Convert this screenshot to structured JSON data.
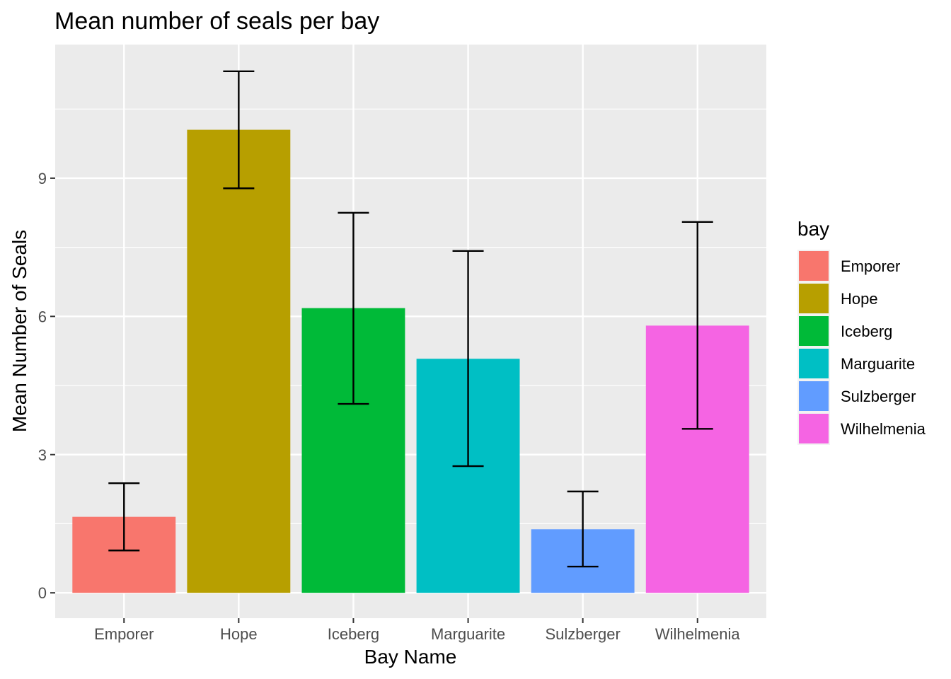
{
  "chart_data": {
    "type": "bar",
    "title": "Mean number of seals per bay",
    "xlabel": "Bay Name",
    "ylabel": "Mean Number of Seals",
    "categories": [
      "Emporer",
      "Hope",
      "Iceberg",
      "Marguarite",
      "Sulzberger",
      "Wilhelmenia"
    ],
    "values": [
      1.65,
      10.05,
      6.18,
      5.08,
      1.38,
      5.8
    ],
    "error_bars": {
      "lower": [
        0.92,
        8.78,
        4.1,
        2.75,
        0.57,
        3.56
      ],
      "upper": [
        2.38,
        11.32,
        8.25,
        7.42,
        2.2,
        8.05
      ]
    },
    "colors": [
      "#F8766D",
      "#B79F00",
      "#00BA38",
      "#00BFC4",
      "#619CFF",
      "#F564E3"
    ],
    "yticks": [
      0,
      3,
      6,
      9
    ],
    "ylim": [
      -0.55,
      11.9
    ],
    "grid": true,
    "legend": {
      "title": "bay",
      "position": "right",
      "entries": [
        "Emporer",
        "Hope",
        "Iceberg",
        "Marguarite",
        "Sulzberger",
        "Wilhelmenia"
      ]
    }
  }
}
